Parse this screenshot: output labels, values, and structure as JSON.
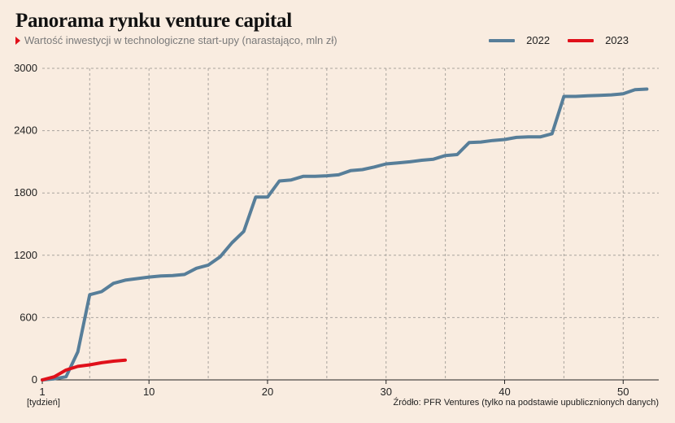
{
  "chart_data": {
    "type": "line",
    "title": "Panorama rynku venture capital",
    "subtitle": "Wartość inwestycji w technologiczne start-upy (narastająco, mln zł)",
    "x_unit_label": "[tydzień]",
    "source": "Źródło: PFR Ventures (tylko na podstawie upublicznionych danych)",
    "xlim": [
      1,
      53
    ],
    "ylim": [
      0,
      3000
    ],
    "x_ticks": [
      1,
      10,
      20,
      30,
      40,
      50
    ],
    "y_ticks": [
      0,
      600,
      1200,
      1800,
      2400,
      3000
    ],
    "grid": true,
    "legend_position": "top-right",
    "series": [
      {
        "name": "2022",
        "color": "#577e99",
        "x": [
          1,
          2,
          3,
          4,
          5,
          6,
          7,
          8,
          9,
          10,
          11,
          12,
          13,
          14,
          15,
          16,
          17,
          18,
          19,
          20,
          21,
          22,
          23,
          24,
          25,
          26,
          27,
          28,
          29,
          30,
          31,
          32,
          33,
          34,
          35,
          36,
          37,
          38,
          39,
          40,
          41,
          42,
          43,
          44,
          45,
          46,
          47,
          48,
          49,
          50,
          51,
          52
        ],
        "y": [
          0,
          10,
          30,
          270,
          820,
          850,
          930,
          960,
          975,
          990,
          1000,
          1005,
          1015,
          1075,
          1105,
          1185,
          1320,
          1430,
          1760,
          1760,
          1915,
          1925,
          1960,
          1960,
          1965,
          1975,
          2015,
          2025,
          2050,
          2080,
          2090,
          2100,
          2115,
          2125,
          2160,
          2170,
          2285,
          2290,
          2305,
          2315,
          2335,
          2340,
          2340,
          2370,
          2730,
          2730,
          2735,
          2740,
          2745,
          2755,
          2795,
          2800
        ]
      },
      {
        "name": "2023",
        "color": "#e0101a",
        "x": [
          1,
          2,
          3,
          4,
          5,
          6,
          7,
          8
        ],
        "y": [
          0,
          30,
          95,
          130,
          145,
          165,
          180,
          190
        ]
      }
    ]
  }
}
